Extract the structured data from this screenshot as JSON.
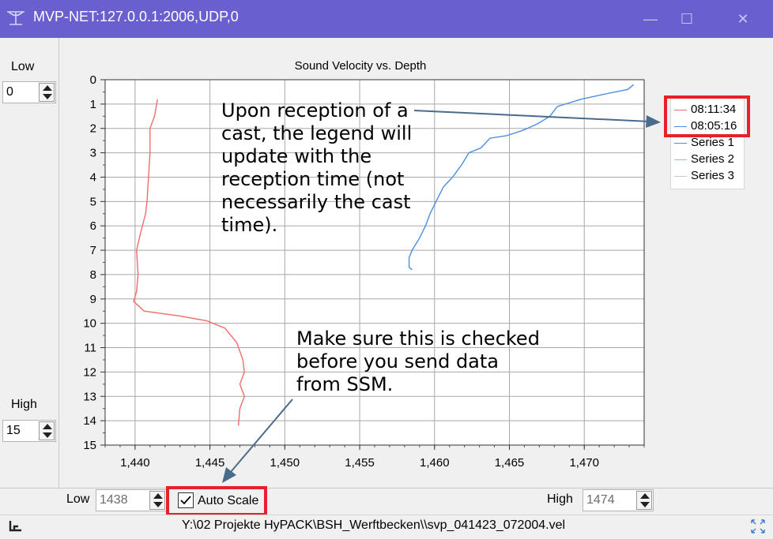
{
  "window": {
    "title": "MVP-NET:127.0.0.1:2006,UDP,0",
    "minimize_glyph": "—",
    "maximize_glyph": "☐",
    "close_glyph": "✕"
  },
  "left_panel": {
    "low_label": "Low",
    "low_value": "0",
    "high_label": "High",
    "high_value": "15"
  },
  "chart_data": {
    "type": "line",
    "title": "Sound Velocity vs. Depth",
    "xlabel": "",
    "ylabel": "",
    "xlim": [
      1438,
      1474
    ],
    "ylim": [
      0,
      15
    ],
    "y_inverted": true,
    "grid": true,
    "legend_position": "right",
    "x_ticks": [
      1440,
      1445,
      1450,
      1455,
      1460,
      1465,
      1470
    ],
    "x_tick_labels": [
      "1,440",
      "1,445",
      "1,450",
      "1,455",
      "1,460",
      "1,465",
      "1,470"
    ],
    "y_ticks": [
      0,
      1,
      2,
      3,
      4,
      5,
      6,
      7,
      8,
      9,
      10,
      11,
      12,
      13,
      14,
      15
    ],
    "y_tick_labels": [
      "0",
      "1",
      "2",
      "3",
      "4",
      "5",
      "6",
      "7",
      "8",
      "9",
      "10",
      "11",
      "12",
      "13",
      "14",
      "15"
    ],
    "series": [
      {
        "name": "08:11:34",
        "color": "#f06d6d",
        "points": [
          [
            1441.5,
            0.8
          ],
          [
            1441.3,
            1.5
          ],
          [
            1441.0,
            2.0
          ],
          [
            1441.0,
            3.0
          ],
          [
            1440.9,
            4.0
          ],
          [
            1440.8,
            5.0
          ],
          [
            1440.7,
            5.5
          ],
          [
            1440.4,
            6.2
          ],
          [
            1440.1,
            7.0
          ],
          [
            1440.2,
            8.0
          ],
          [
            1440.1,
            8.7
          ],
          [
            1439.9,
            9.1
          ],
          [
            1440.6,
            9.5
          ],
          [
            1443.0,
            9.7
          ],
          [
            1444.8,
            9.9
          ],
          [
            1446.0,
            10.2
          ],
          [
            1446.8,
            10.8
          ],
          [
            1447.2,
            11.5
          ],
          [
            1447.3,
            12.0
          ],
          [
            1447.0,
            12.5
          ],
          [
            1447.3,
            13.0
          ],
          [
            1447.0,
            13.5
          ],
          [
            1446.9,
            14.2
          ]
        ]
      },
      {
        "name": "08:05:16",
        "color": "#4a8fe0",
        "points": [
          [
            1473.3,
            0.2
          ],
          [
            1472.9,
            0.4
          ],
          [
            1471.3,
            0.6
          ],
          [
            1469.8,
            0.8
          ],
          [
            1468.2,
            1.1
          ],
          [
            1467.7,
            1.5
          ],
          [
            1466.9,
            1.8
          ],
          [
            1466.2,
            2.0
          ],
          [
            1465.8,
            2.1
          ],
          [
            1464.8,
            2.3
          ],
          [
            1463.7,
            2.4
          ],
          [
            1463.1,
            2.8
          ],
          [
            1462.3,
            3.0
          ],
          [
            1461.8,
            3.5
          ],
          [
            1461.2,
            4.0
          ],
          [
            1460.6,
            4.4
          ],
          [
            1460.1,
            5.0
          ],
          [
            1459.7,
            5.5
          ],
          [
            1459.4,
            6.0
          ],
          [
            1459.0,
            6.5
          ],
          [
            1458.5,
            7.0
          ],
          [
            1458.3,
            7.3
          ],
          [
            1458.3,
            7.7
          ],
          [
            1458.5,
            7.8
          ]
        ]
      }
    ],
    "legend_entries": [
      {
        "name": "08:11:34",
        "color": "#f06d6d"
      },
      {
        "name": "08:05:16",
        "color": "#4a8fe0"
      },
      {
        "name": "Series 1",
        "color": "#4a8fe0"
      },
      {
        "name": "Series 2",
        "color": "#9fb8d8"
      },
      {
        "name": "Series 3",
        "color": "#c8c8c8"
      }
    ]
  },
  "annotations": {
    "legend_note": [
      "Upon reception of a",
      "cast, the legend will",
      "update with the",
      "reception time (not",
      "necessarily the cast",
      "time)."
    ],
    "autoscale_note": [
      "Make sure this is checked",
      "before you send data",
      "from SSM."
    ]
  },
  "bottom_bar": {
    "low_label": "Low",
    "low_value": "1438",
    "auto_scale_label": "Auto Scale",
    "auto_scale_checked": true,
    "high_label": "High",
    "high_value": "1474"
  },
  "status_bar": {
    "path": "Y:\\02 Projekte HyPACK\\BSH_Werftbecken\\\\svp_041423_072004.vel"
  },
  "colors": {
    "titlebar": "#6a5fcf",
    "highlight_box": "#e8202a",
    "arrow": "#4a6b8c"
  }
}
